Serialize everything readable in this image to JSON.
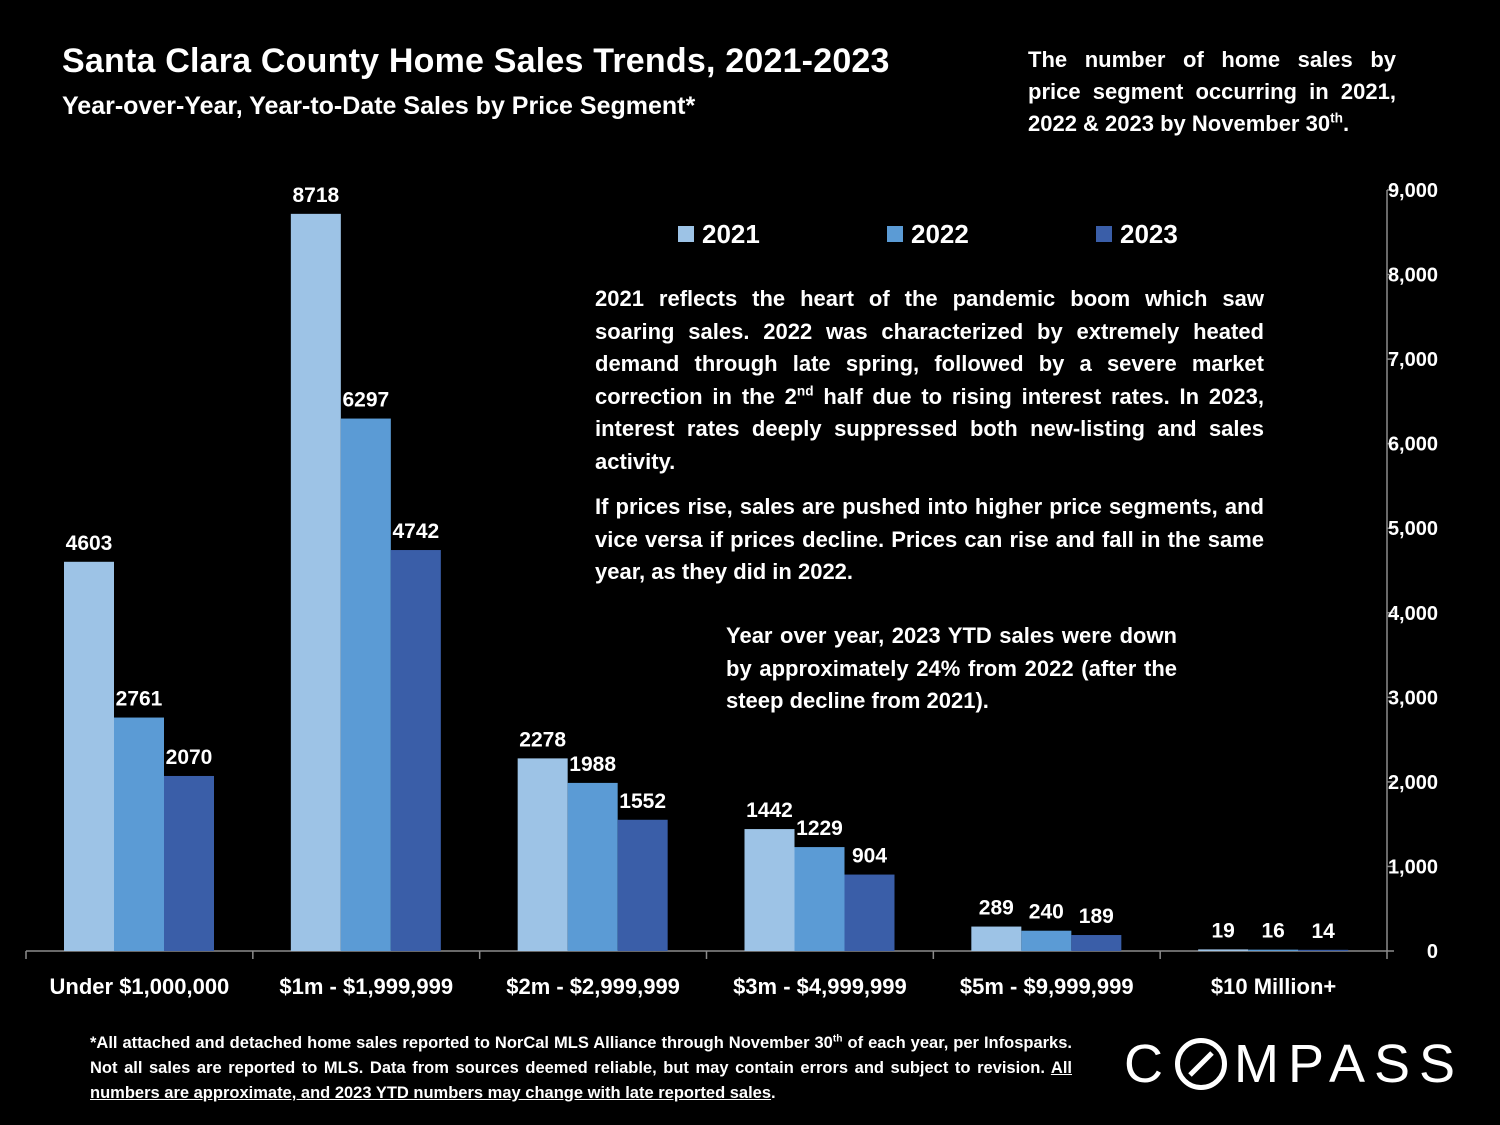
{
  "title": "Santa Clara County Home Sales Trends, 2021-2023",
  "subtitle": "Year-over-Year, Year-to-Date Sales by Price Segment*",
  "top_note": {
    "text": "The number of home sales by price segment occurring in 2021, 2022 & 2023 by November 30",
    "sup": "th",
    "end": "."
  },
  "annotations": {
    "p1_before": "2021 reflects the heart of the pandemic boom which saw soaring sales. 2022 was characterized by extremely heated demand through late spring, followed by a severe market correction in the 2",
    "p1_sup": "nd",
    "p1_after": " half due to rising interest rates. In 2023, interest rates deeply suppressed both new-listing and sales activity.",
    "p2": "If prices rise, sales are pushed into higher price segments, and vice versa if prices decline. Prices can rise and fall in the same year, as they did in 2022.",
    "p3": "Year over year, 2023 YTD sales were down by approximately 24% from 2022 (after the steep decline from 2021)."
  },
  "footnote": {
    "part1": "*All attached and detached home sales reported to NorCal MLS Alliance through November 30",
    "sup": "th",
    "part2": " of each year, per Infosparks. Not all sales are reported to MLS. Data from sources deemed reliable, but may contain errors and subject to revision. ",
    "underlined": "All numbers are approximate, and 2023 YTD numbers may change with late reported sales",
    "end": "."
  },
  "logo": {
    "before": "C",
    "after": "MPASS"
  },
  "colors": {
    "background": "#000000",
    "s2021": "#9dc3e6",
    "s2022": "#5b9bd5",
    "s2023": "#3a5ea8",
    "text": "#ffffff",
    "axis": "#8c8c8c"
  },
  "chart_data": {
    "type": "bar",
    "title": "Santa Clara County Home Sales Trends, 2021-2023",
    "categories": [
      "Under $1,000,000",
      "$1m - $1,999,999",
      "$2m - $2,999,999",
      "$3m - $4,999,999",
      "$5m - $9,999,999",
      "$10 Million+"
    ],
    "series": [
      {
        "name": "2021",
        "values": [
          4603,
          8718,
          2278,
          1442,
          289,
          19
        ],
        "color": "#9dc3e6"
      },
      {
        "name": "2022",
        "values": [
          2761,
          6297,
          1988,
          1229,
          240,
          16
        ],
        "color": "#5b9bd5"
      },
      {
        "name": "2023",
        "values": [
          2070,
          4742,
          1552,
          904,
          189,
          14
        ],
        "color": "#3a5ea8"
      }
    ],
    "yticks": [
      "0",
      "1,000",
      "2,000",
      "3,000",
      "4,000",
      "5,000",
      "6,000",
      "7,000",
      "8,000",
      "9,000"
    ],
    "ylim": [
      0,
      9000
    ],
    "y_axis_side": "right",
    "xlabel": "",
    "ylabel": "",
    "legend_position": "top",
    "grid": false
  }
}
